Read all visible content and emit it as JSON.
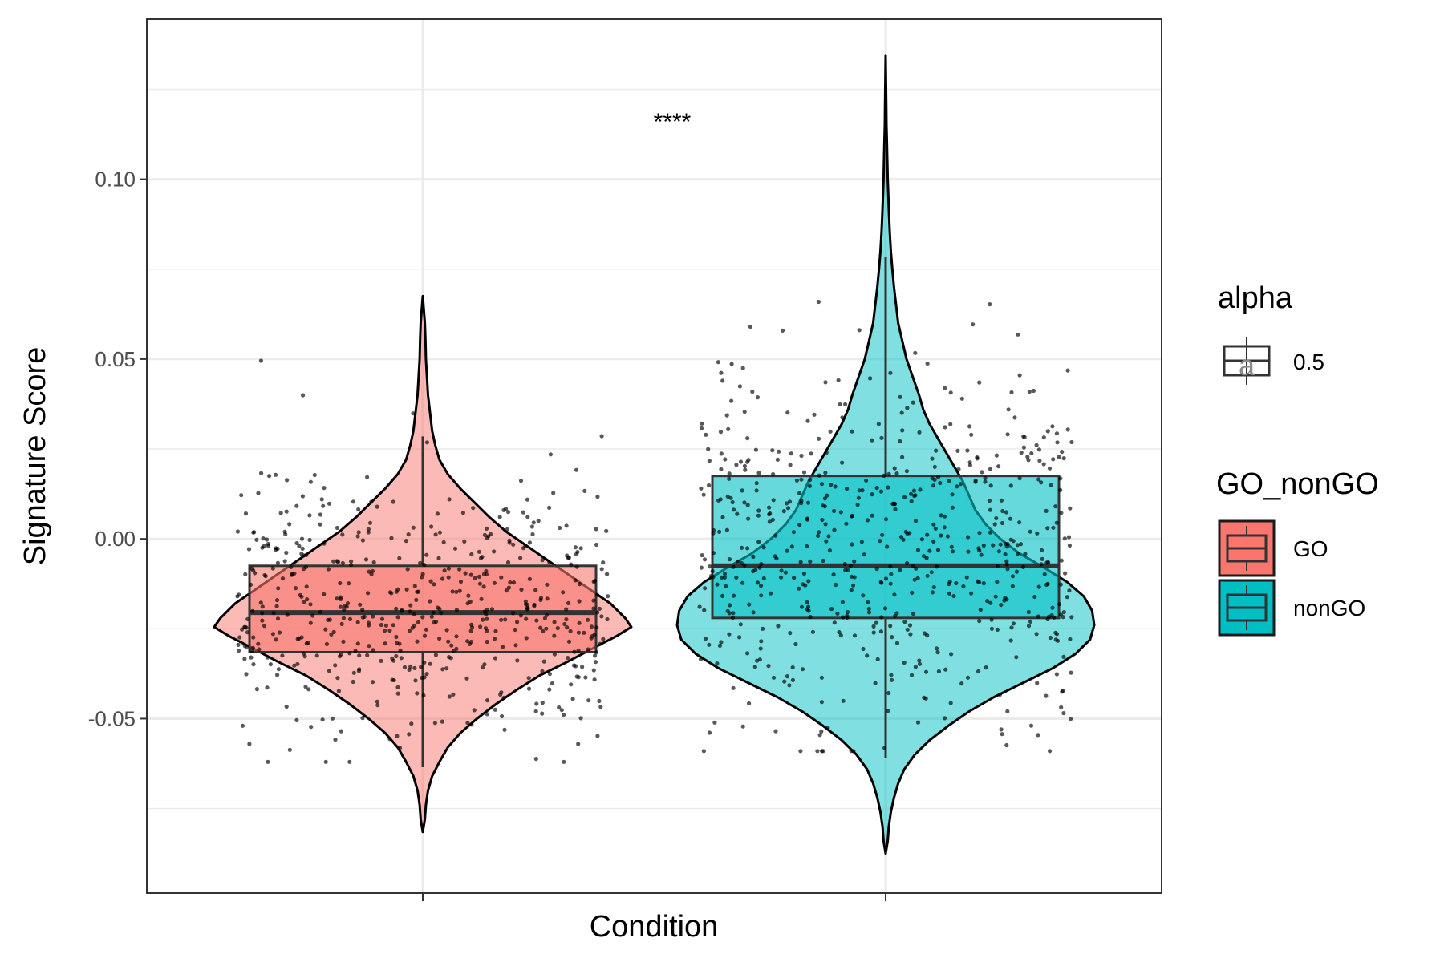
{
  "chart_data": {
    "type": "violin",
    "xlabel": "Condition",
    "ylabel": "Signature Score",
    "ylim": [
      -0.0985,
      0.1445
    ],
    "yticks": [
      -0.05,
      0.0,
      0.05,
      0.1
    ],
    "ytick_labels": [
      "-0.05",
      "0.00",
      "0.05",
      "0.10"
    ],
    "grid": true,
    "categories": [
      "GO",
      "nonGO"
    ],
    "significance": "****",
    "series": [
      {
        "name": "GO",
        "color": "#F8766D",
        "box": {
          "q1": -0.0315,
          "median": -0.0205,
          "q3": -0.0075,
          "whisker_low": -0.0635,
          "whisker_high": 0.0285
        },
        "violin_range": [
          -0.0815,
          0.0675
        ],
        "violin_density": [
          [
            -0.0815,
            0.0
          ],
          [
            -0.078,
            0.01
          ],
          [
            -0.074,
            0.015
          ],
          [
            -0.07,
            0.025
          ],
          [
            -0.066,
            0.045
          ],
          [
            -0.062,
            0.08
          ],
          [
            -0.058,
            0.12
          ],
          [
            -0.054,
            0.18
          ],
          [
            -0.05,
            0.26
          ],
          [
            -0.046,
            0.35
          ],
          [
            -0.042,
            0.45
          ],
          [
            -0.038,
            0.56
          ],
          [
            -0.034,
            0.7
          ],
          [
            -0.03,
            0.83
          ],
          [
            -0.027,
            0.93
          ],
          [
            -0.0245,
            1.0
          ],
          [
            -0.022,
            0.97
          ],
          [
            -0.018,
            0.9
          ],
          [
            -0.014,
            0.8
          ],
          [
            -0.01,
            0.7
          ],
          [
            -0.006,
            0.6
          ],
          [
            -0.002,
            0.5
          ],
          [
            0.002,
            0.4
          ],
          [
            0.006,
            0.32
          ],
          [
            0.01,
            0.25
          ],
          [
            0.014,
            0.18
          ],
          [
            0.018,
            0.12
          ],
          [
            0.022,
            0.08
          ],
          [
            0.026,
            0.06
          ],
          [
            0.03,
            0.045
          ],
          [
            0.035,
            0.035
          ],
          [
            0.04,
            0.025
          ],
          [
            0.045,
            0.02
          ],
          [
            0.05,
            0.015
          ],
          [
            0.055,
            0.013
          ],
          [
            0.06,
            0.01
          ],
          [
            0.0675,
            0.0
          ]
        ]
      },
      {
        "name": "nonGO",
        "color": "#00BFC4",
        "box": {
          "q1": -0.022,
          "median": -0.0075,
          "q3": 0.0175,
          "whisker_low": -0.061,
          "whisker_high": 0.0785
        },
        "violin_range": [
          -0.0875,
          0.1345
        ],
        "violin_density": [
          [
            -0.0875,
            0.0
          ],
          [
            -0.084,
            0.01
          ],
          [
            -0.08,
            0.015
          ],
          [
            -0.076,
            0.025
          ],
          [
            -0.072,
            0.04
          ],
          [
            -0.068,
            0.06
          ],
          [
            -0.064,
            0.09
          ],
          [
            -0.06,
            0.14
          ],
          [
            -0.056,
            0.21
          ],
          [
            -0.052,
            0.3
          ],
          [
            -0.048,
            0.4
          ],
          [
            -0.044,
            0.52
          ],
          [
            -0.04,
            0.66
          ],
          [
            -0.036,
            0.8
          ],
          [
            -0.032,
            0.91
          ],
          [
            -0.028,
            0.98
          ],
          [
            -0.024,
            1.0
          ],
          [
            -0.02,
            0.99
          ],
          [
            -0.016,
            0.95
          ],
          [
            -0.012,
            0.87
          ],
          [
            -0.008,
            0.76
          ],
          [
            -0.004,
            0.64
          ],
          [
            0.0,
            0.55
          ],
          [
            0.004,
            0.48
          ],
          [
            0.008,
            0.43
          ],
          [
            0.012,
            0.4
          ],
          [
            0.016,
            0.37
          ],
          [
            0.02,
            0.33
          ],
          [
            0.024,
            0.29
          ],
          [
            0.028,
            0.25
          ],
          [
            0.032,
            0.21
          ],
          [
            0.036,
            0.18
          ],
          [
            0.04,
            0.16
          ],
          [
            0.045,
            0.13
          ],
          [
            0.05,
            0.1
          ],
          [
            0.055,
            0.08
          ],
          [
            0.06,
            0.06
          ],
          [
            0.065,
            0.05
          ],
          [
            0.07,
            0.04
          ],
          [
            0.075,
            0.032
          ],
          [
            0.08,
            0.025
          ],
          [
            0.085,
            0.02
          ],
          [
            0.09,
            0.016
          ],
          [
            0.095,
            0.013
          ],
          [
            0.1,
            0.01
          ],
          [
            0.105,
            0.008
          ],
          [
            0.11,
            0.006
          ],
          [
            0.115,
            0.004
          ],
          [
            0.12,
            0.003
          ],
          [
            0.1345,
            0.0
          ]
        ]
      }
    ]
  },
  "legend": {
    "alpha_title": "alpha",
    "alpha_value": "0.5",
    "alpha_glyph": "a",
    "fill_title": "GO_nonGO",
    "items": [
      {
        "label": "GO",
        "color": "#F8766D"
      },
      {
        "label": "nonGO",
        "color": "#00BFC4"
      }
    ]
  }
}
